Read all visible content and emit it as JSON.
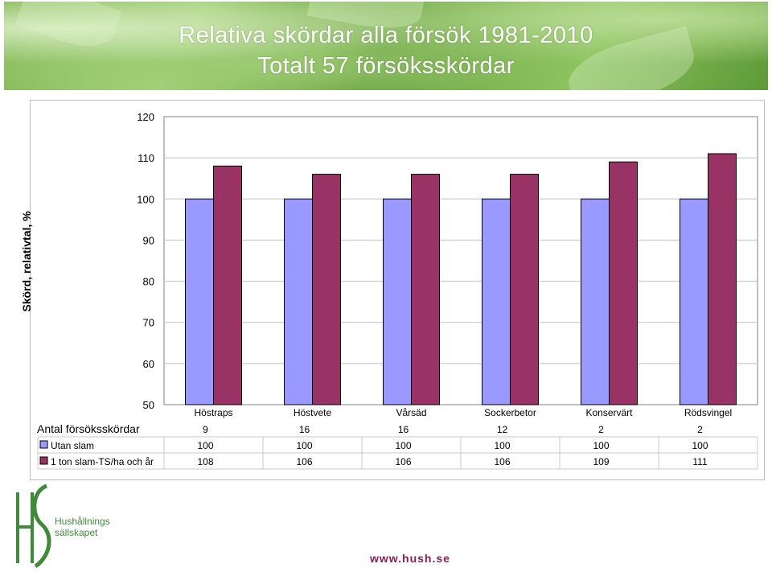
{
  "header": {
    "title_line1": "Relativa skördar alla försök 1981-2010",
    "title_line2": "Totalt 57 försöksskördar"
  },
  "chart_data": {
    "type": "bar",
    "categories": [
      "Höstraps",
      "Höstvete",
      "Vårsäd",
      "Sockerbetor",
      "Konservärt",
      "Rödsvingel"
    ],
    "series": [
      {
        "name": "Utan slam",
        "values": [
          100,
          100,
          100,
          100,
          100,
          100
        ],
        "color": "#9999ff"
      },
      {
        "name": "1 ton slam-TS/ha och år",
        "values": [
          108,
          106,
          106,
          106,
          109,
          111
        ],
        "color": "#993366"
      }
    ],
    "ylabel": "Skörd, relativtal, %",
    "ylim": [
      50,
      120
    ],
    "yticks": [
      50,
      60,
      70,
      80,
      90,
      100,
      110,
      120
    ],
    "grid": true,
    "data_table": {
      "count_label": "Antal försöksskördar",
      "counts": [
        9,
        16,
        16,
        12,
        2,
        2
      ]
    }
  },
  "logo": {
    "letters": "HS",
    "name_line1": "Hushållnings",
    "name_line2": "sällskapet"
  },
  "footer": {
    "url": "www.hush.se"
  }
}
